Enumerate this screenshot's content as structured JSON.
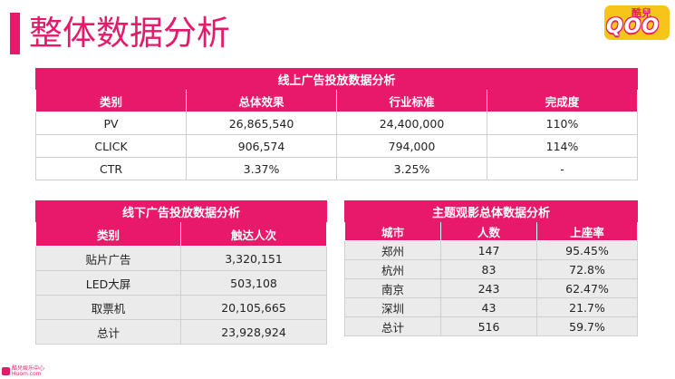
{
  "page": {
    "title": "整体数据分析",
    "logo": {
      "top": "酷兒",
      "main": "QOO"
    },
    "accent_color": "#e8196b"
  },
  "online": {
    "caption": "线上广告投放数据分析",
    "headers": [
      "类别",
      "总体效果",
      "行业标准",
      "完成度"
    ],
    "rows": [
      [
        "PV",
        "26,865,540",
        "24,400,000",
        "110%"
      ],
      [
        "CLICK",
        "906,574",
        "794,000",
        "114%"
      ],
      [
        "CTR",
        "3.37%",
        "3.25%",
        "-"
      ]
    ]
  },
  "offline": {
    "caption": "线下广告投放数据分析",
    "headers": [
      "类别",
      "触达人次"
    ],
    "rows": [
      [
        "贴片广告",
        "3,320,151"
      ],
      [
        "LED大屏",
        "503,108"
      ],
      [
        "取票机",
        "20,105,665"
      ],
      [
        "总计",
        "23,928,924"
      ]
    ]
  },
  "theme": {
    "caption": "主题观影总体数据分析",
    "headers": [
      "城市",
      "人数",
      "上座率"
    ],
    "rows": [
      [
        "郑州",
        "147",
        "95.45%"
      ],
      [
        "杭州",
        "83",
        "72.8%"
      ],
      [
        "南京",
        "243",
        "62.47%"
      ],
      [
        "深圳",
        "43",
        "21.7%"
      ],
      [
        "总计",
        "516",
        "59.7%"
      ]
    ]
  },
  "watermark": {
    "line1": "酷兒娱乐中心",
    "line2": "Huom.com"
  }
}
